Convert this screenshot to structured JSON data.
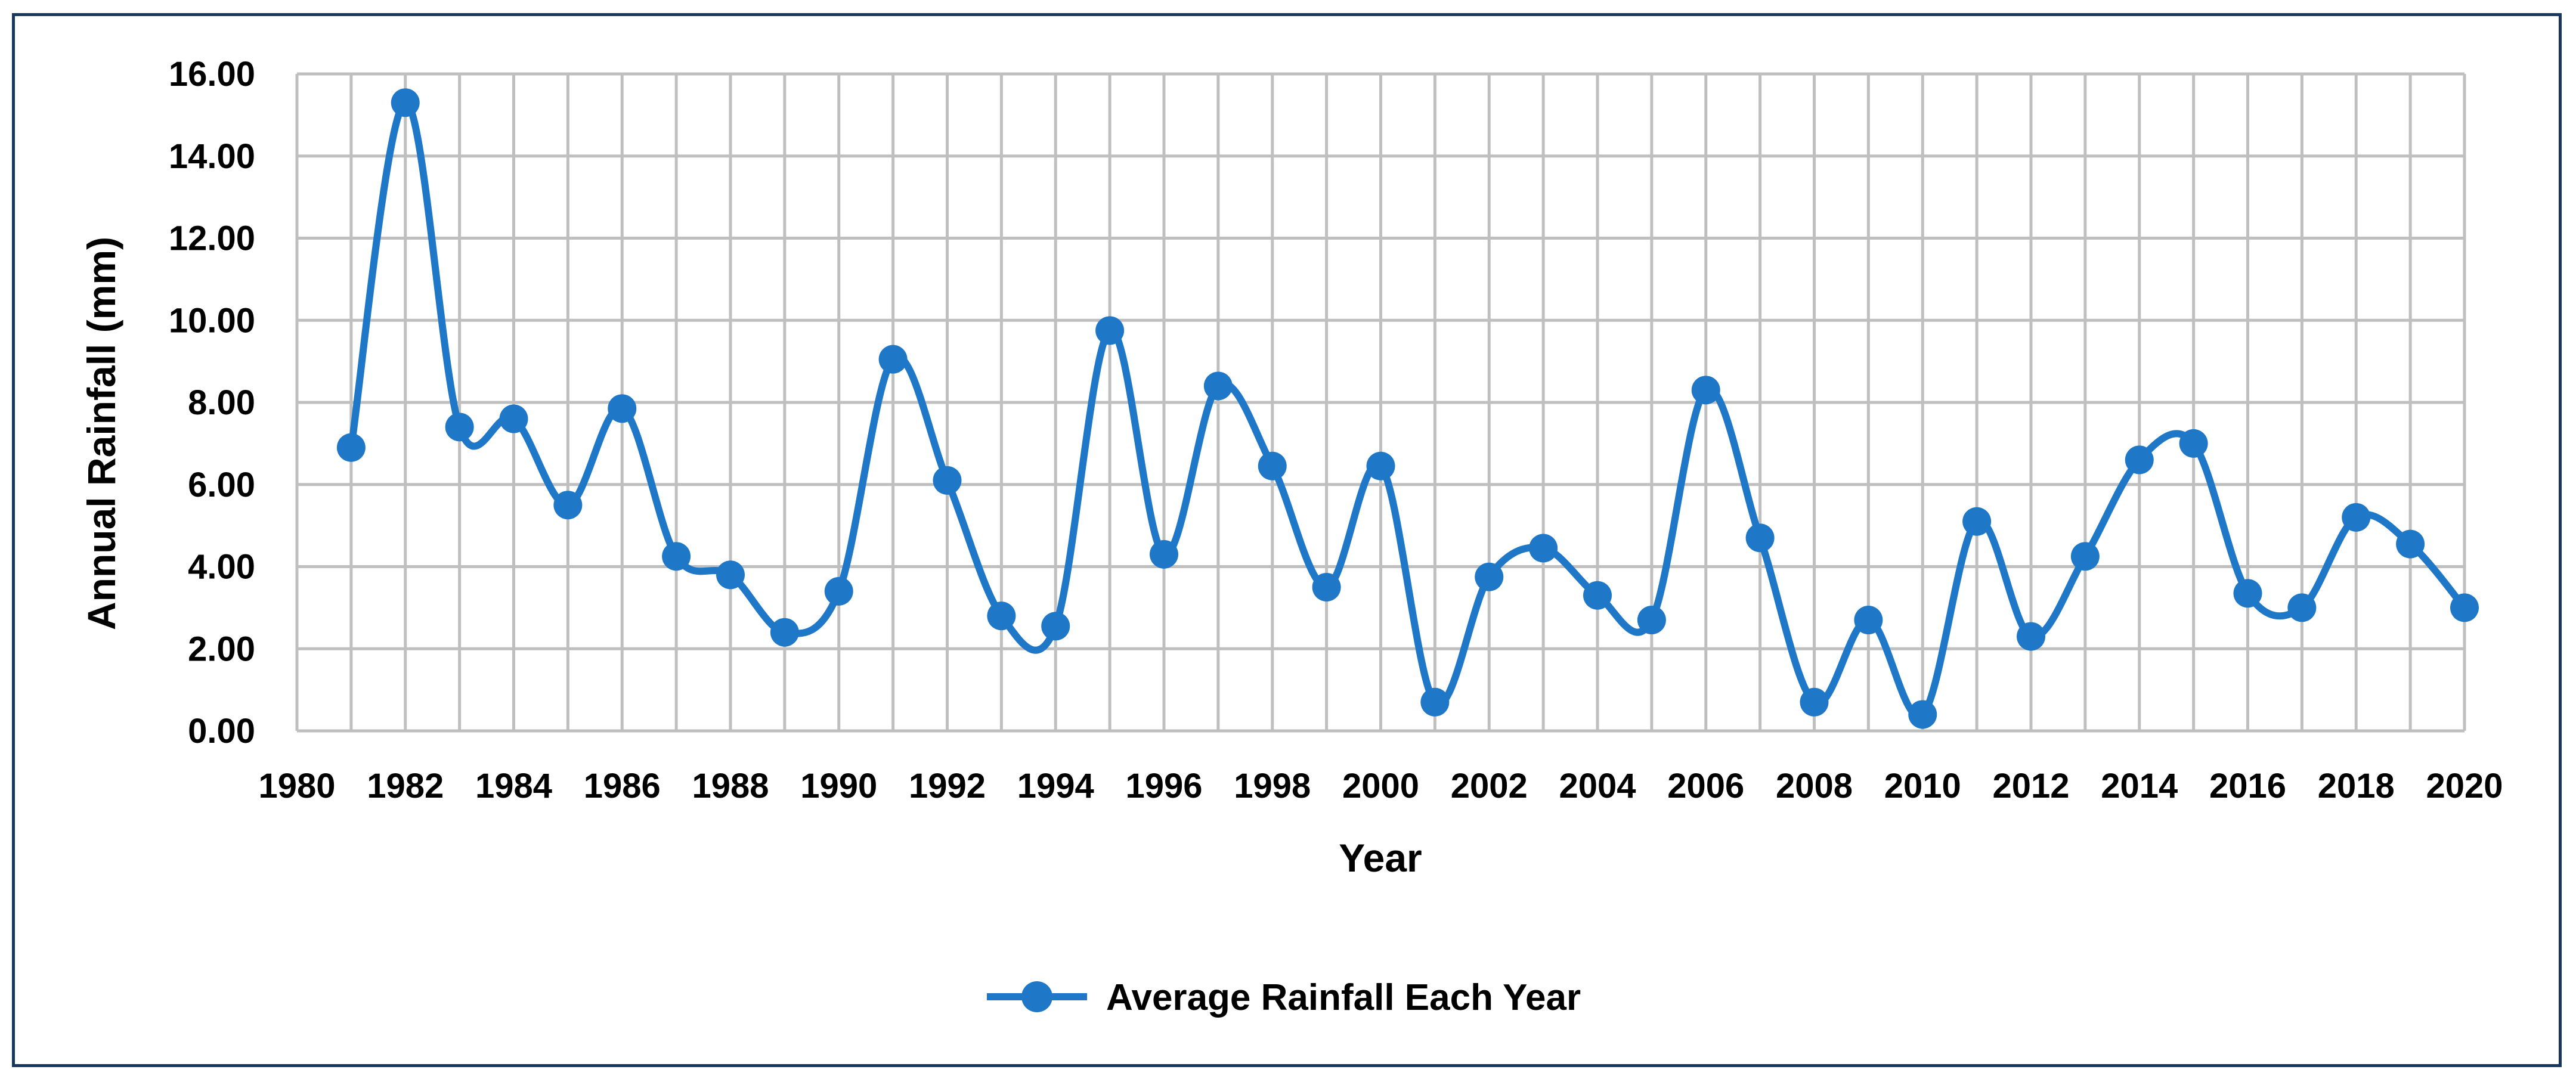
{
  "chart_data": {
    "type": "line",
    "title": "",
    "xlabel": "Year",
    "ylabel": "Annual Rainfall (mm)",
    "xlim": [
      1980,
      2020
    ],
    "ylim": [
      0,
      16
    ],
    "grid": true,
    "legend_position": "bottom-center",
    "x_tick_labels": [
      "1980",
      "1982",
      "1984",
      "1986",
      "1988",
      "1990",
      "1992",
      "1994",
      "1996",
      "1998",
      "2000",
      "2002",
      "2004",
      "2006",
      "2008",
      "2010",
      "2012",
      "2014",
      "2016",
      "2018",
      "2020"
    ],
    "y_tick_labels": [
      "0.00",
      "2.00",
      "4.00",
      "6.00",
      "8.00",
      "10.00",
      "12.00",
      "14.00",
      "16.00"
    ],
    "color": "#1f77c8",
    "series": [
      {
        "name": "Average Rainfall Each Year",
        "x": [
          1981,
          1982,
          1983,
          1984,
          1985,
          1986,
          1987,
          1988,
          1989,
          1990,
          1991,
          1992,
          1993,
          1994,
          1995,
          1996,
          1997,
          1998,
          1999,
          2000,
          2001,
          2002,
          2003,
          2004,
          2005,
          2006,
          2007,
          2008,
          2009,
          2010,
          2011,
          2012,
          2013,
          2014,
          2015,
          2016,
          2017,
          2018,
          2019,
          2020
        ],
        "values": [
          6.9,
          15.3,
          7.4,
          7.6,
          5.5,
          7.85,
          4.25,
          3.8,
          2.4,
          3.4,
          9.05,
          6.1,
          2.8,
          2.55,
          9.75,
          4.3,
          8.4,
          6.45,
          3.5,
          6.45,
          0.7,
          3.75,
          4.45,
          3.3,
          2.7,
          8.3,
          4.7,
          0.7,
          2.7,
          0.4,
          5.1,
          2.3,
          4.25,
          6.6,
          7.0,
          3.35,
          3.0,
          5.2,
          4.55,
          3.0
        ]
      }
    ]
  }
}
